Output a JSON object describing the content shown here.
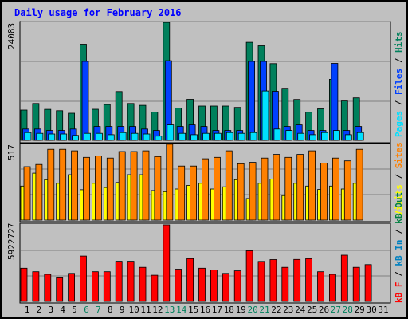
{
  "title": "Daily usage for February 2016",
  "colors": {
    "background": "#c0c0c0",
    "hits": "#00805c",
    "files": "#0040ff",
    "pages": "#00e0ff",
    "visits": "#ffff00",
    "sites": "#ff8000",
    "kbf": "#ff0000",
    "kbin": "#0080c0",
    "kbout": "#008040",
    "weekend_label": "#00805c"
  },
  "panels": {
    "top": {
      "max_label": "24083",
      "legend": [
        {
          "text": "Pages",
          "color_key": "pages"
        },
        {
          "text": "Files",
          "color_key": "files"
        },
        {
          "text": "Hits",
          "color_key": "hits"
        }
      ]
    },
    "middle": {
      "max_label": "517",
      "legend": [
        {
          "text": "Visits",
          "color_key": "visits"
        },
        {
          "text": "Sites",
          "color_key": "sites"
        }
      ]
    },
    "bottom": {
      "max_label": "5922727",
      "legend": [
        {
          "text": "kB F",
          "color_key": "kbf"
        },
        {
          "text": "kB In",
          "color_key": "kbin"
        },
        {
          "text": "kB Out",
          "color_key": "kbout"
        }
      ]
    }
  },
  "chart_data": {
    "type": "bar",
    "title": "Daily usage for February 2016",
    "categories": [
      "1",
      "2",
      "3",
      "4",
      "5",
      "6",
      "7",
      "8",
      "9",
      "10",
      "11",
      "12",
      "13",
      "14",
      "15",
      "16",
      "17",
      "18",
      "19",
      "20",
      "21",
      "22",
      "23",
      "24",
      "25",
      "26",
      "27",
      "28",
      "29",
      "30",
      "31"
    ],
    "weekend_days": [
      "6",
      "7",
      "13",
      "14",
      "20",
      "21",
      "27",
      "28"
    ],
    "series": [
      {
        "name": "Hits",
        "panel": "top",
        "max": 24083,
        "values": [
          6150,
          7460,
          6290,
          6010,
          5490,
          19470,
          6310,
          7250,
          9890,
          7460,
          7100,
          5720,
          23910,
          6570,
          8330,
          6950,
          6950,
          6950,
          6670,
          19870,
          19150,
          15550,
          10550,
          8290,
          5710,
          6390,
          12380,
          7990,
          8610,
          null,
          null
        ]
      },
      {
        "name": "Files",
        "panel": "top",
        "max": 24083,
        "values": [
          2290,
          2290,
          2010,
          2010,
          2290,
          16000,
          2820,
          2820,
          2820,
          2820,
          2290,
          2010,
          16150,
          2820,
          3140,
          2820,
          2010,
          2010,
          2010,
          16000,
          16000,
          9940,
          2820,
          3140,
          2010,
          2010,
          15600,
          2010,
          2820,
          null,
          null
        ]
      },
      {
        "name": "Pages",
        "panel": "top",
        "max": 24083,
        "values": [
          1580,
          1430,
          1290,
          1290,
          1000,
          1430,
          1430,
          1150,
          1580,
          1430,
          1290,
          860,
          3140,
          1430,
          1150,
          1430,
          1430,
          1580,
          1430,
          1580,
          10000,
          2290,
          2010,
          1430,
          1150,
          1580,
          2010,
          1150,
          1580,
          null,
          null
        ]
      },
      {
        "name": "Visits",
        "panel": "middle",
        "max": 517,
        "values": [
          230,
          317,
          273,
          249,
          307,
          205,
          249,
          220,
          254,
          307,
          307,
          200,
          192,
          210,
          235,
          249,
          210,
          225,
          273,
          146,
          249,
          278,
          166,
          249,
          230,
          207,
          230,
          210,
          249,
          null,
          null
        ]
      },
      {
        "name": "Sites",
        "panel": "middle",
        "max": 517,
        "values": [
          361,
          376,
          478,
          478,
          468,
          424,
          434,
          419,
          463,
          463,
          468,
          429,
          512,
          365,
          365,
          414,
          424,
          468,
          381,
          390,
          419,
          444,
          424,
          444,
          468,
          385,
          419,
          400,
          478,
          null,
          null
        ]
      },
      {
        "name": "kB F",
        "panel": "bottom",
        "max": 5922727,
        "values": [
          2570000,
          2300000,
          2100000,
          1890000,
          2170000,
          3510000,
          2300000,
          2300000,
          3110000,
          3110000,
          2640000,
          2030000,
          5922727,
          2500000,
          3310000,
          2570000,
          2440000,
          2170000,
          2370000,
          3920000,
          3100000,
          3240000,
          2640000,
          3250000,
          3310000,
          2300000,
          2100000,
          3580000,
          2640000,
          2850000,
          null
        ]
      }
    ]
  }
}
